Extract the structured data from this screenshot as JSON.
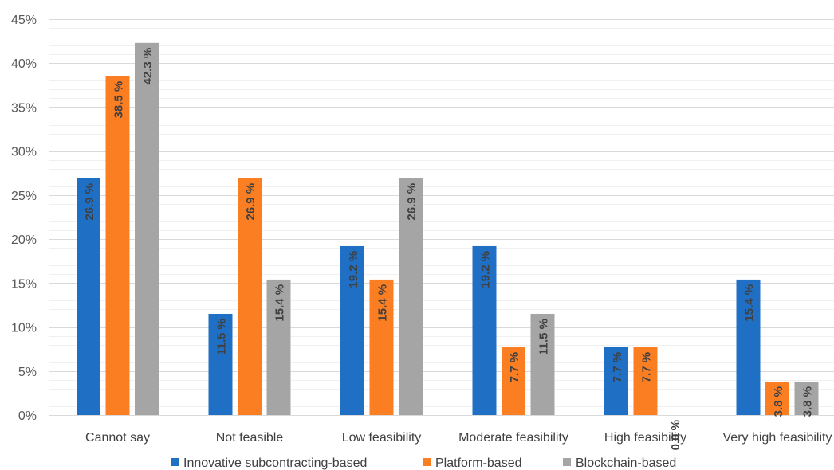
{
  "chart_data": {
    "type": "bar",
    "title": "",
    "xlabel": "",
    "ylabel": "",
    "ylim": [
      0,
      45
    ],
    "yticks": [
      "0%",
      "5%",
      "10%",
      "15%",
      "20%",
      "25%",
      "30%",
      "35%",
      "40%",
      "45%"
    ],
    "grid": true,
    "legend_position": "bottom",
    "categories": [
      "Cannot say",
      "Not feasible",
      "Low feasibility",
      "Moderate feasibility",
      "High feasibility",
      "Very high feasibility"
    ],
    "series": [
      {
        "name": "Innovative subcontracting-based",
        "color": "#1f6fc5",
        "values": [
          26.9,
          11.5,
          19.2,
          19.2,
          7.7,
          15.4
        ],
        "labels": [
          "26.9 %",
          "11.5 %",
          "19.2 %",
          "19.2 %",
          "7.7 %",
          "15.4 %"
        ]
      },
      {
        "name": "Platform-based",
        "color": "#fb7f22",
        "values": [
          38.5,
          26.9,
          15.4,
          7.7,
          7.7,
          3.8
        ],
        "labels": [
          "38.5 %",
          "26.9 %",
          "15.4 %",
          "7.7 %",
          "7.7 %",
          "3.8 %"
        ]
      },
      {
        "name": "Blockchain-based",
        "color": "#a5a5a5",
        "values": [
          42.3,
          15.4,
          26.9,
          11.5,
          0.0,
          3.8
        ],
        "labels": [
          "42.3 %",
          "15.4 %",
          "26.9 %",
          "11.5 %",
          "0.0 %",
          "3.8 %"
        ]
      }
    ]
  }
}
